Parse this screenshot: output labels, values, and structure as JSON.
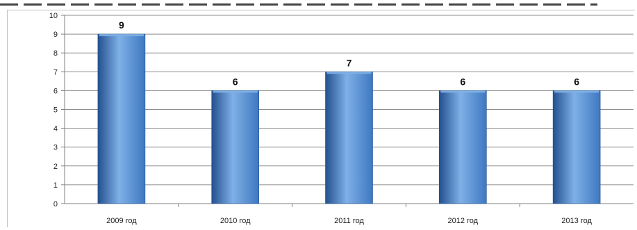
{
  "colors": {
    "bar_fill": "#3e78c2",
    "bar_light": "#7fb0e6",
    "bar_dark": "#23508f",
    "grid": "#8c8c8c",
    "axis": "#7f7f7f"
  },
  "chart_data": {
    "type": "bar",
    "title": "",
    "xlabel": "",
    "ylabel": "",
    "categories": [
      "2009 год",
      "2010 год",
      "2011 год",
      "2012 год",
      "2013 год"
    ],
    "values": [
      9,
      6,
      7,
      6,
      6
    ],
    "data_labels": [
      "9",
      "6",
      "7",
      "6",
      "6"
    ],
    "ylim": [
      0,
      10
    ],
    "yticks": [
      0,
      1,
      2,
      3,
      4,
      5,
      6,
      7,
      8,
      9,
      10
    ],
    "ytick_labels": [
      "0",
      "1",
      "2",
      "3",
      "4",
      "5",
      "6",
      "7",
      "8",
      "9",
      "10"
    ],
    "grid": true,
    "legend": "none"
  }
}
